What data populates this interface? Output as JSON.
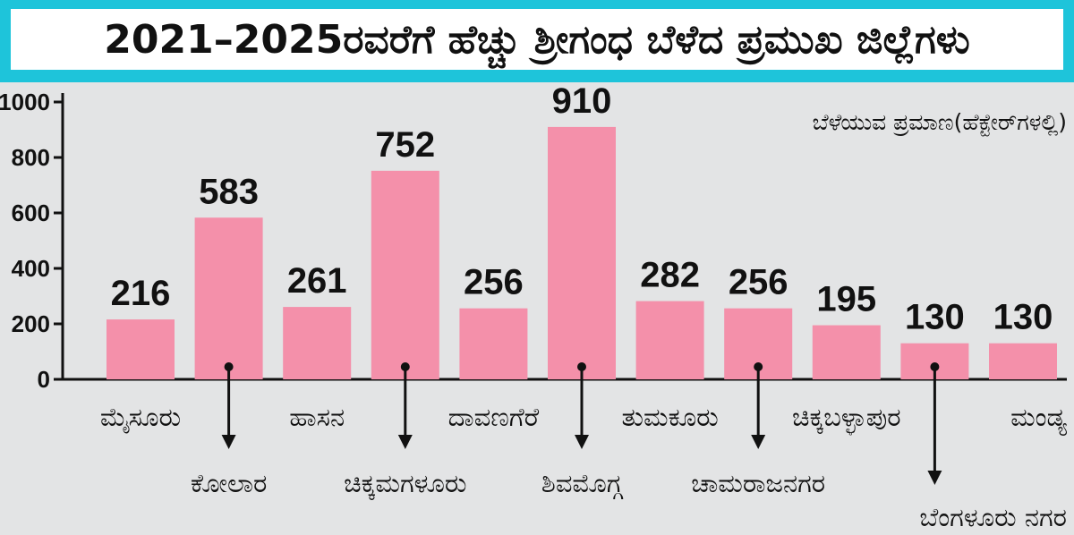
{
  "title": "2021–2025ರವರೆಗೆ ಹೆಚ್ಚು ಶ್ರೀಗಂಧ ಬೆಳೆದ ಪ್ರಮುಖ ಜಿಲ್ಲೆಗಳು",
  "colors": {
    "title_band": "#1ec4da",
    "bar": "#f490aa",
    "background": "#e3e4e5"
  },
  "chart_data": {
    "type": "bar",
    "title": "2021–2025ರವರೆಗೆ ಹೆಚ್ಚು ಶ್ರೀಗಂಧ ಬೆಳೆದ ಪ್ರಮುಖ ಜಿಲ್ಲೆಗಳು",
    "unit_label": "ಬೆಳೆಯುವ ಪ್ರಮಾಣ(ಹೆಕ್ಟೇರ್‌ಗಳಲ್ಲಿ)",
    "ylim": [
      0,
      1000
    ],
    "yticks": [
      "0",
      "200",
      "400",
      "600",
      "800",
      "1000"
    ],
    "grid": false,
    "categories": [
      "ಮೈಸೂರು",
      "ಕೋಲಾರ",
      "ಹಾಸನ",
      "ಚಿಕ್ಕಮಗಳೂರು",
      "ದಾವಣಗೆರೆ",
      "ಶಿವಮೊಗ್ಗ",
      "ತುಮಕೂರು",
      "ಚಾಮರಾಜನಗರ",
      "ಚಿಕ್ಕಬಳ್ಳಾಪುರ",
      "ಬೆಂಗಳೂರು ನಗರ",
      "ಮಂಡ್ಯ"
    ],
    "values": [
      216,
      583,
      261,
      752,
      256,
      910,
      282,
      256,
      195,
      130,
      130
    ],
    "label_placement": [
      "below",
      "arrow",
      "below",
      "arrow",
      "below",
      "arrow",
      "below",
      "arrow",
      "below",
      "arrow",
      "below"
    ]
  }
}
